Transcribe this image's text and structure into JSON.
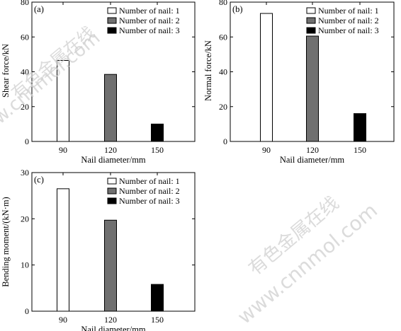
{
  "watermark": {
    "cn": "有色金属在线",
    "url": "www.cnnmol.com"
  },
  "fill_colors": [
    "#ffffff",
    "#707070",
    "#000000"
  ],
  "chart_data": [
    {
      "type": "bar",
      "panel_label": "(a)",
      "categories": [
        "90",
        "120",
        "150"
      ],
      "series": [
        {
          "name": "Number of nail: 1",
          "values": [
            46.5,
            null,
            null
          ]
        },
        {
          "name": "Number of nail: 2",
          "values": [
            null,
            38.5,
            null
          ]
        },
        {
          "name": "Number of nail: 3",
          "values": [
            null,
            null,
            10
          ]
        }
      ],
      "xlabel": "Nail diameter/mm",
      "ylabel": "Shear force/kN",
      "ylim": [
        0,
        80
      ],
      "yticks": [
        0,
        20,
        40,
        60,
        80
      ],
      "legend_position": "top-right",
      "grid": false
    },
    {
      "type": "bar",
      "panel_label": "(b)",
      "categories": [
        "90",
        "120",
        "150"
      ],
      "series": [
        {
          "name": "Number of nail: 1",
          "values": [
            73.5,
            null,
            null
          ]
        },
        {
          "name": "Number of nail: 2",
          "values": [
            null,
            60.5,
            null
          ]
        },
        {
          "name": "Number of nail: 3",
          "values": [
            null,
            null,
            16
          ]
        }
      ],
      "xlabel": "Nail diameter/mm",
      "ylabel": "Normal force/kN",
      "ylim": [
        0,
        80
      ],
      "yticks": [
        0,
        20,
        40,
        60,
        80
      ],
      "legend_position": "top-right",
      "grid": false
    },
    {
      "type": "bar",
      "panel_label": "(c)",
      "categories": [
        "90",
        "120",
        "150"
      ],
      "series": [
        {
          "name": "Number of nail: 1",
          "values": [
            26.5,
            null,
            null
          ]
        },
        {
          "name": "Number of nail: 2",
          "values": [
            null,
            19.7,
            null
          ]
        },
        {
          "name": "Number of nail: 3",
          "values": [
            null,
            null,
            5.8
          ]
        }
      ],
      "xlabel": "Nail diameter/mm",
      "ylabel": "Bending moment/(kN·m)",
      "ylim": [
        0,
        30
      ],
      "yticks": [
        0,
        10,
        20,
        30
      ],
      "legend_position": "top-right",
      "grid": false
    }
  ]
}
